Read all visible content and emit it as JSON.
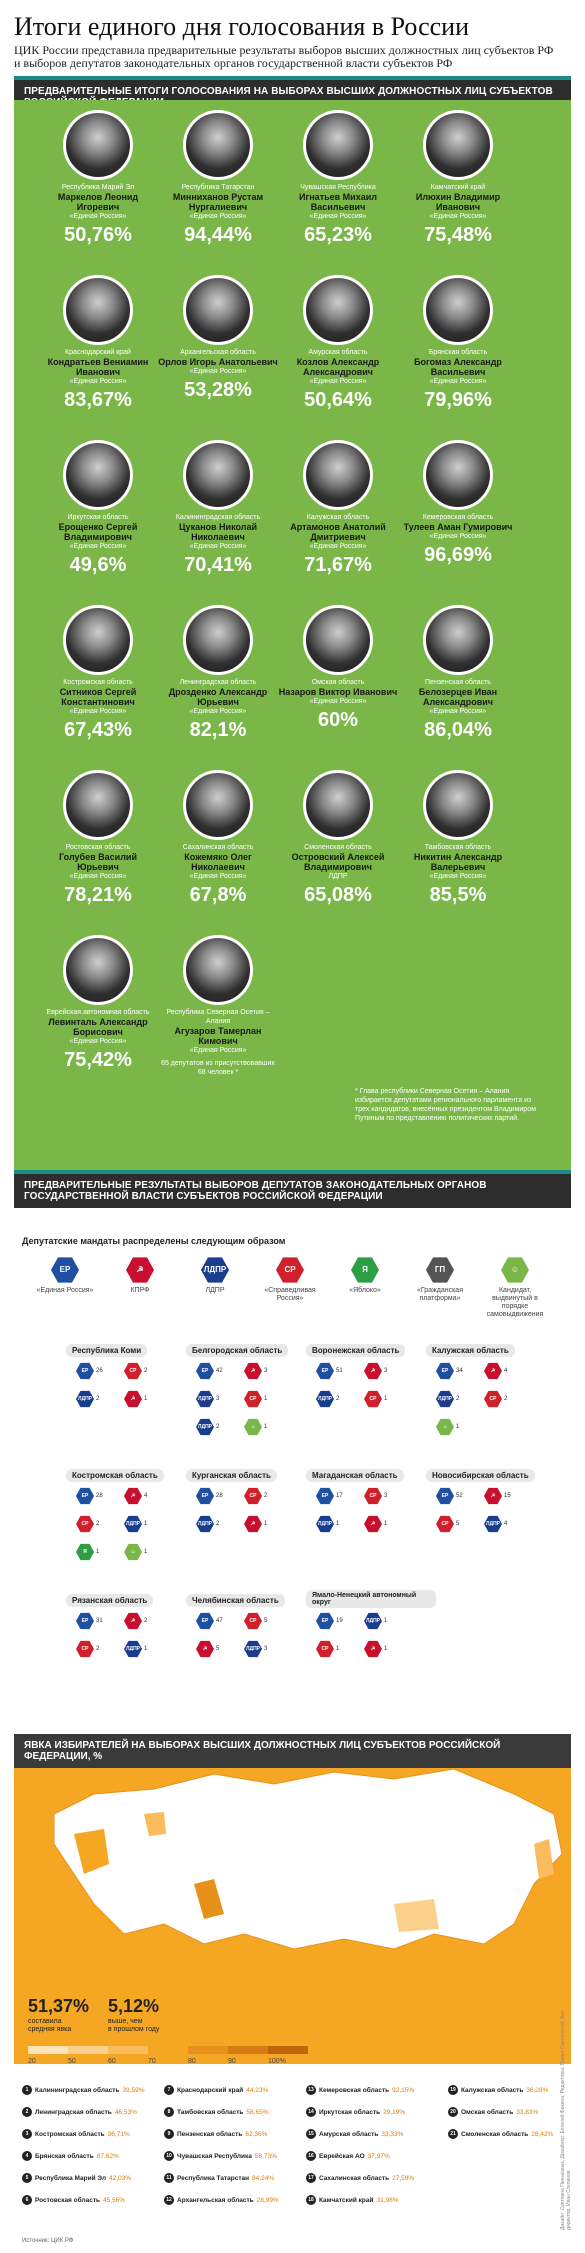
{
  "title": "Итоги единого дня голосования в России",
  "subtitle": [
    "ЦИК России представила предварительные результаты выборов высших должностных лиц субъектов РФ",
    "и выборов депутатов законодательных органов государственной власти субъектов РФ"
  ],
  "section1_title": "Предварительные итоги голосования на выборах высших должностных лиц субъектов Российской Федерации",
  "candidates": [
    {
      "region": "Республика Марий Эл",
      "name": "Маркелов Леонид Игоревич",
      "party": "«Единая Россия»",
      "pct": "50,76%"
    },
    {
      "region": "Республика Татарстан",
      "name": "Минниханов Рустам Нургалиевич",
      "party": "«Единая Россия»",
      "pct": "94,44%"
    },
    {
      "region": "Чувашская Республика",
      "name": "Игнатьев Михаил Васильевич",
      "party": "«Единая Россия»",
      "pct": "65,23%"
    },
    {
      "region": "Камчатский край",
      "name": "Илюхин Владимир Иванович",
      "party": "«Единая Россия»",
      "pct": "75,48%"
    },
    {
      "region": "Краснодарский край",
      "name": "Кондратьев Вениамин Иванович",
      "party": "«Единая Россия»",
      "pct": "83,67%"
    },
    {
      "region": "Архангельская область",
      "name": "Орлов Игорь Анатольевич",
      "party": "«Единая Россия»",
      "pct": "53,28%"
    },
    {
      "region": "Амурская область",
      "name": "Козлов Александр Александрович",
      "party": "«Единая Россия»",
      "pct": "50,64%"
    },
    {
      "region": "Брянская область",
      "name": "Богомаз Александр Васильевич",
      "party": "«Единая Россия»",
      "pct": "79,96%"
    },
    {
      "region": "Иркутская область",
      "name": "Ерощенко Сергей Владимирович",
      "party": "«Единая Россия»",
      "pct": "49,6%"
    },
    {
      "region": "Калининградская область",
      "name": "Цуканов Николай Николаевич",
      "party": "«Единая Россия»",
      "pct": "70,41%"
    },
    {
      "region": "Калужская область",
      "name": "Артамонов Анатолий Дмитриевич",
      "party": "«Единая Россия»",
      "pct": "71,67%"
    },
    {
      "region": "Кемеровская область",
      "name": "Тулеев Аман Гумирович",
      "party": "«Единая Россия»",
      "pct": "96,69%"
    },
    {
      "region": "Костромская область",
      "name": "Ситников Сергей Константинович",
      "party": "«Единая Россия»",
      "pct": "67,43%"
    },
    {
      "region": "Ленинградская область",
      "name": "Дрозденко Александр Юрьевич",
      "party": "«Единая Россия»",
      "pct": "82,1%"
    },
    {
      "region": "Омская область",
      "name": "Назаров Виктор Иванович",
      "party": "«Единая Россия»",
      "pct": "60%"
    },
    {
      "region": "Пензенская область",
      "name": "Белозерцев Иван Александрович",
      "party": "«Единая Россия»",
      "pct": "86,04%"
    },
    {
      "region": "Ростовская область",
      "name": "Голубев Василий Юрьевич",
      "party": "«Единая Россия»",
      "pct": "78,21%"
    },
    {
      "region": "Сахалинская область",
      "name": "Кожемяко Олег Николаевич",
      "party": "«Единая Россия»",
      "pct": "67,8%"
    },
    {
      "region": "Смоленская область",
      "name": "Островский Алексей Владимирович",
      "party": "ЛДПР",
      "pct": "65,08%"
    },
    {
      "region": "Тамбовская область",
      "name": "Никитин Александр Валерьевич",
      "party": "«Единая Россия»",
      "pct": "85,5%"
    },
    {
      "region": "Еврейская автономная область",
      "name": "Левинталь Александр Борисович",
      "party": "«Единая Россия»",
      "pct": "75,42%"
    },
    {
      "region": "Республика Северная Осетия – Алания",
      "name": "Агузаров Тамерлан Кимович",
      "party": "«Единая Россия»",
      "pct": "",
      "note": "65 депутатов из присутствовавших 68 человек *"
    }
  ],
  "footnote": "* Глава республики Северная Осетия – Алания избирается депутатами регионального парламента из трех кандидатов, внесённых президентом Владимиром Путиным по представлению политических партий.",
  "section2_title": [
    "Предварительные результаты выборов депутатов законодательных органов",
    "государственной власти субъектов Российской Федерации"
  ],
  "mandates_title": "Депутатские мандаты распределены следующим образом",
  "parties": [
    {
      "label": "«Единая Россия»",
      "abbr": "ЕР",
      "color": "#1f4fa0"
    },
    {
      "label": "КПРФ",
      "abbr": "☭",
      "color": "#c8102e"
    },
    {
      "label": "ЛДПР",
      "abbr": "ЛДПР",
      "color": "#1a3d8f"
    },
    {
      "label": "«Справедливая Россия»",
      "abbr": "СР",
      "color": "#d0202b"
    },
    {
      "label": "«Яблоко»",
      "abbr": "Я",
      "color": "#2e9e44"
    },
    {
      "label": "«Гражданская платформа»",
      "abbr": "ГП",
      "color": "#555555"
    },
    {
      "label": "Кандидат, выдвинутый в порядке самовыдвижения",
      "abbr": "☺",
      "color": "#7ab648"
    }
  ],
  "regions": [
    {
      "name": "Республика Коми",
      "items": [
        [
          "ЕР",
          "26"
        ],
        [
          "СР",
          "2"
        ],
        [
          "ЛДПР",
          "2"
        ],
        [
          "☭",
          "1"
        ]
      ]
    },
    {
      "name": "Белгородская область",
      "items": [
        [
          "ЕР",
          "42"
        ],
        [
          "☭",
          "3"
        ],
        [
          "ЛДПР",
          "3"
        ],
        [
          "СР",
          "1"
        ],
        [
          "ЛДПР",
          "2"
        ],
        [
          "☺",
          "1"
        ]
      ]
    },
    {
      "name": "Воронежская область",
      "items": [
        [
          "ЕР",
          "51"
        ],
        [
          "☭",
          "3"
        ],
        [
          "ЛДПР",
          "2"
        ],
        [
          "СР",
          "1"
        ]
      ]
    },
    {
      "name": "Калужская область",
      "items": [
        [
          "ЕР",
          "34"
        ],
        [
          "☭",
          "4"
        ],
        [
          "ЛДПР",
          "2"
        ],
        [
          "СР",
          "2"
        ],
        [
          "☺",
          "1"
        ]
      ]
    },
    {
      "name": "Костромская область",
      "items": [
        [
          "ЕР",
          "28"
        ],
        [
          "☭",
          "4"
        ],
        [
          "СР",
          "2"
        ],
        [
          "ЛДПР",
          "1"
        ],
        [
          "Я",
          "1"
        ],
        [
          "☺",
          "1"
        ]
      ]
    },
    {
      "name": "Курганская область",
      "items": [
        [
          "ЕР",
          "28"
        ],
        [
          "СР",
          "2"
        ],
        [
          "ЛДПР",
          "2"
        ],
        [
          "☭",
          "1"
        ]
      ]
    },
    {
      "name": "Магаданская область",
      "items": [
        [
          "ЕР",
          "17"
        ],
        [
          "СР",
          "3"
        ],
        [
          "ЛДПР",
          "1"
        ],
        [
          "☭",
          "1"
        ]
      ]
    },
    {
      "name": "Новосибирская область",
      "items": [
        [
          "ЕР",
          "52"
        ],
        [
          "☭",
          "15"
        ],
        [
          "СР",
          "5"
        ],
        [
          "ЛДПР",
          "4"
        ]
      ]
    },
    {
      "name": "Рязанская область",
      "items": [
        [
          "ЕР",
          "31"
        ],
        [
          "☭",
          "2"
        ],
        [
          "СР",
          "2"
        ],
        [
          "ЛДПР",
          "1"
        ]
      ]
    },
    {
      "name": "Челябинская область",
      "items": [
        [
          "ЕР",
          "47"
        ],
        [
          "СР",
          "5"
        ],
        [
          "☭",
          "5"
        ],
        [
          "ЛДПР",
          "3"
        ]
      ]
    },
    {
      "name": "Ямало-Ненецкий автономный округ",
      "items": [
        [
          "ЕР",
          "19"
        ],
        [
          "ЛДПР",
          "1"
        ],
        [
          "СР",
          "1"
        ],
        [
          "☭",
          "1"
        ]
      ]
    }
  ],
  "section3_title": "Явка избирателей на выборах высших должностных лиц субъектов Российской Федерации, %",
  "turnout_avg": "51,37%",
  "turnout_avg_label": [
    "составила",
    "средняя явка"
  ],
  "turnout_diff": "5,12%",
  "turnout_diff_label": [
    "выше, чем",
    "в прошлом году"
  ],
  "scale_labels": [
    "20",
    "50",
    "60",
    "70",
    "80",
    "90",
    "100%"
  ],
  "scale_colors": [
    "#fde4b8",
    "#fbd08a",
    "#f9bb5c",
    "#f5a623",
    "#e8911a",
    "#d77c12",
    "#c0650a"
  ],
  "turnout_list": [
    {
      "n": "1",
      "name": "Калининградская область",
      "v": "39,59%"
    },
    {
      "n": "2",
      "name": "Ленинградская область",
      "v": "46,53%"
    },
    {
      "n": "3",
      "name": "Костромская область",
      "v": "36,71%"
    },
    {
      "n": "4",
      "name": "Брянская область",
      "v": "87,62%"
    },
    {
      "n": "5",
      "name": "Республика Марий Эл",
      "v": "42,03%"
    },
    {
      "n": "6",
      "name": "Ростовская область",
      "v": "45,56%"
    },
    {
      "n": "7",
      "name": "Краснодарский край",
      "v": "44,23%"
    },
    {
      "n": "8",
      "name": "Тамбовская область",
      "v": "58,65%"
    },
    {
      "n": "9",
      "name": "Пензенская область",
      "v": "62,36%"
    },
    {
      "n": "10",
      "name": "Чувашская Республика",
      "v": "58,73%"
    },
    {
      "n": "11",
      "name": "Республика Татарстан",
      "v": "84,24%"
    },
    {
      "n": "12",
      "name": "Архангельская область",
      "v": "28,99%"
    },
    {
      "n": "13",
      "name": "Кемеровская область",
      "v": "92,15%"
    },
    {
      "n": "14",
      "name": "Иркутская область",
      "v": "29,19%"
    },
    {
      "n": "15",
      "name": "Амурская область",
      "v": "33,33%"
    },
    {
      "n": "16",
      "name": "Еврейская АО",
      "v": "37,97%"
    },
    {
      "n": "17",
      "name": "Сахалинская область",
      "v": "27,59%"
    },
    {
      "n": "18",
      "name": "Камчатский край",
      "v": "31,98%"
    },
    {
      "n": "19",
      "name": "Калужская область",
      "v": "36,28%"
    },
    {
      "n": "20",
      "name": "Омская область",
      "v": "33,83%"
    },
    {
      "n": "21",
      "name": "Смоленская область",
      "v": "28,42%"
    }
  ],
  "source": "Источник: ЦИК РФ",
  "credits": "Дизайн: Светлана Пеньковых, Дизайнер: Евгений Фокина, Редакторы: Павел Сарнавский, Арт-директор, Иван Степанов"
}
